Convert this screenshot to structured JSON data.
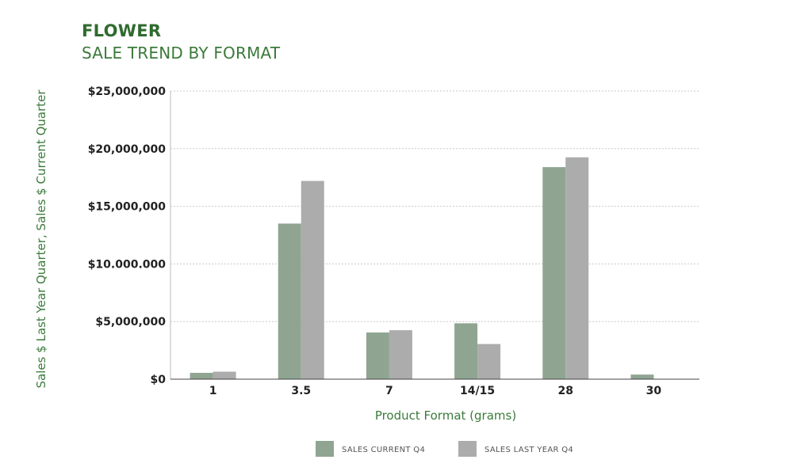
{
  "header": {
    "title": "FLOWER",
    "subtitle": "SALE TREND BY FORMAT"
  },
  "chart_data": {
    "type": "bar",
    "categories": [
      "1",
      "3.5",
      "7",
      "14/15",
      "28",
      "30"
    ],
    "series": [
      {
        "name": "SALES CURRENT Q4",
        "values": [
          550000,
          13500000,
          4050000,
          4850000,
          18400000,
          400000
        ],
        "color": "#8fa592"
      },
      {
        "name": "SALES LAST YEAR Q4",
        "values": [
          650000,
          17200000,
          4250000,
          3050000,
          19250000,
          0
        ],
        "color": "#acacac"
      }
    ],
    "yticks": [
      0,
      5000000,
      10000000,
      15000000,
      20000000,
      25000000
    ],
    "ytick_labels": [
      "$0",
      "$5,000,000",
      "$10.000.000",
      "$15,000,000",
      "$20,000,000",
      "$25,000,000"
    ],
    "ylim": [
      0,
      25000000
    ],
    "xlabel": "Product Format (grams)",
    "ylabel": "Sales $ Last Year Quarter, Sales $ Current Quarter",
    "grid": true,
    "legend_position": "bottom-center"
  }
}
